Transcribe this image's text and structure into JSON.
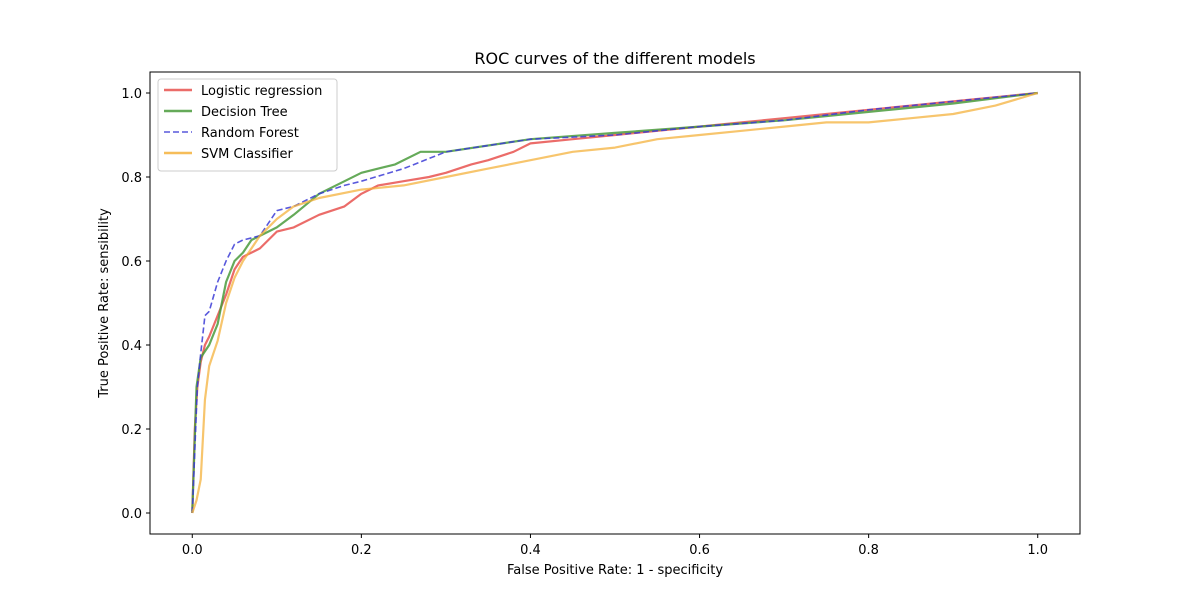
{
  "chart_data": {
    "type": "line",
    "title": "ROC curves of the different models",
    "xlabel": "False Positive Rate: 1 - specificity",
    "ylabel": "True Positive Rate: sensibility",
    "xlim": [
      -0.05,
      1.05
    ],
    "ylim": [
      -0.05,
      1.05
    ],
    "xticks": [
      0.0,
      0.2,
      0.4,
      0.6,
      0.8,
      1.0
    ],
    "yticks": [
      0.0,
      0.2,
      0.4,
      0.6,
      0.8,
      1.0
    ],
    "xtick_labels": [
      "0.0",
      "0.2",
      "0.4",
      "0.6",
      "0.8",
      "1.0"
    ],
    "ytick_labels": [
      "0.0",
      "0.2",
      "0.4",
      "0.6",
      "0.8",
      "1.0"
    ],
    "grid": false,
    "legend_position": "upper-left",
    "series": [
      {
        "name": "Logistic regression",
        "color": "#e8524f",
        "linestyle": "solid",
        "x": [
          0.0,
          0.003,
          0.006,
          0.01,
          0.015,
          0.02,
          0.03,
          0.04,
          0.05,
          0.06,
          0.08,
          0.1,
          0.12,
          0.15,
          0.18,
          0.2,
          0.22,
          0.25,
          0.28,
          0.3,
          0.33,
          0.35,
          0.38,
          0.4,
          0.45,
          0.5,
          0.55,
          0.6,
          0.65,
          0.7,
          0.75,
          0.8,
          0.85,
          0.9,
          0.95,
          1.0
        ],
        "y": [
          0.0,
          0.2,
          0.3,
          0.36,
          0.4,
          0.42,
          0.47,
          0.52,
          0.58,
          0.61,
          0.63,
          0.67,
          0.68,
          0.71,
          0.73,
          0.76,
          0.78,
          0.79,
          0.8,
          0.81,
          0.83,
          0.84,
          0.86,
          0.88,
          0.89,
          0.9,
          0.91,
          0.92,
          0.93,
          0.94,
          0.95,
          0.96,
          0.97,
          0.98,
          0.99,
          1.0
        ]
      },
      {
        "name": "Decision Tree",
        "color": "#4a9b3c",
        "linestyle": "solid",
        "x": [
          0.0,
          0.005,
          0.01,
          0.02,
          0.03,
          0.04,
          0.05,
          0.06,
          0.07,
          0.1,
          0.12,
          0.15,
          0.2,
          0.22,
          0.24,
          0.27,
          0.3,
          0.4,
          0.5,
          0.6,
          0.7,
          0.8,
          0.9,
          1.0
        ],
        "y": [
          0.0,
          0.3,
          0.37,
          0.4,
          0.45,
          0.55,
          0.6,
          0.62,
          0.65,
          0.68,
          0.71,
          0.76,
          0.81,
          0.82,
          0.83,
          0.86,
          0.86,
          0.89,
          0.905,
          0.92,
          0.935,
          0.955,
          0.975,
          1.0
        ]
      },
      {
        "name": "Random Forest",
        "color": "#3b3bd6",
        "linestyle": "dashed",
        "x": [
          0.0,
          0.003,
          0.006,
          0.01,
          0.015,
          0.02,
          0.03,
          0.04,
          0.05,
          0.06,
          0.08,
          0.1,
          0.12,
          0.15,
          0.18,
          0.2,
          0.25,
          0.3,
          0.35,
          0.4,
          0.5,
          0.6,
          0.7,
          0.8,
          0.9,
          1.0
        ],
        "y": [
          0.0,
          0.15,
          0.3,
          0.38,
          0.47,
          0.48,
          0.55,
          0.6,
          0.64,
          0.65,
          0.66,
          0.72,
          0.73,
          0.76,
          0.78,
          0.79,
          0.82,
          0.86,
          0.875,
          0.89,
          0.9,
          0.92,
          0.935,
          0.96,
          0.98,
          1.0
        ]
      },
      {
        "name": "SVM Classifier",
        "color": "#f4b23c",
        "linestyle": "solid",
        "x": [
          0.0,
          0.005,
          0.01,
          0.015,
          0.02,
          0.03,
          0.04,
          0.05,
          0.06,
          0.08,
          0.1,
          0.12,
          0.15,
          0.2,
          0.25,
          0.3,
          0.35,
          0.4,
          0.45,
          0.5,
          0.55,
          0.6,
          0.65,
          0.7,
          0.75,
          0.8,
          0.85,
          0.9,
          0.95,
          1.0
        ],
        "y": [
          0.0,
          0.03,
          0.08,
          0.27,
          0.35,
          0.41,
          0.5,
          0.56,
          0.6,
          0.66,
          0.7,
          0.73,
          0.75,
          0.77,
          0.78,
          0.8,
          0.82,
          0.84,
          0.86,
          0.87,
          0.89,
          0.9,
          0.91,
          0.92,
          0.93,
          0.93,
          0.94,
          0.95,
          0.97,
          1.0
        ]
      }
    ]
  }
}
